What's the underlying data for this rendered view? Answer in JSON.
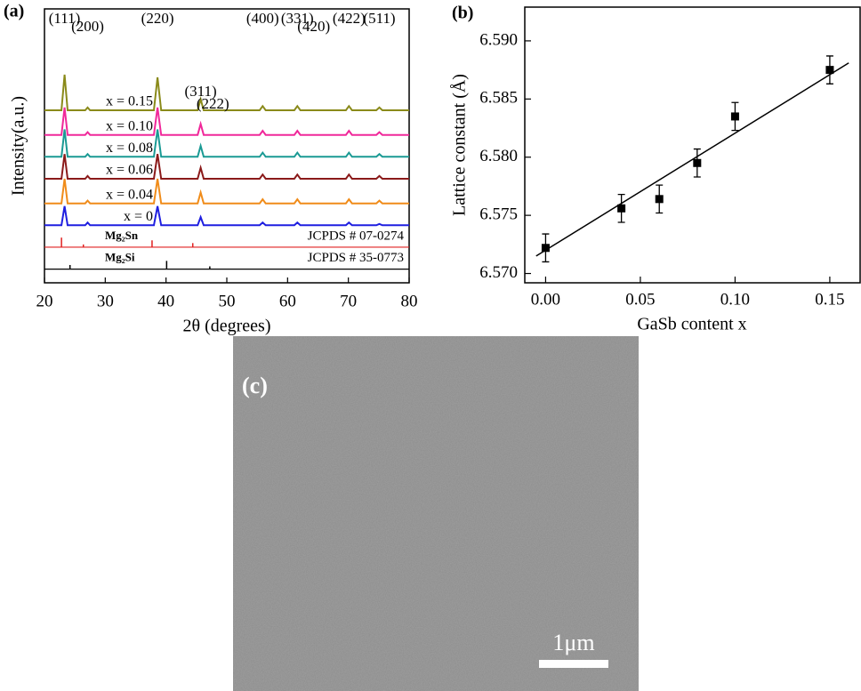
{
  "chart_data": [
    {
      "type": "line",
      "panel_label": "(a)",
      "x_label": "2θ (degrees)",
      "y_label": "Intensity(a.u.)",
      "xlim": [
        20,
        80
      ],
      "xticks": [
        20,
        30,
        40,
        50,
        60,
        70,
        80
      ],
      "ylim": [
        0,
        100
      ],
      "x": [
        20,
        22.8,
        23.3,
        23.8,
        26.7,
        27.1,
        27.5,
        38.0,
        38.6,
        39.2,
        45.2,
        45.7,
        46.2,
        55.4,
        55.9,
        56.4,
        61.1,
        61.6,
        62.1,
        69.6,
        70.1,
        70.6,
        74.6,
        75.1,
        75.6,
        80
      ],
      "series": [
        {
          "name": "x = 0",
          "color": "#1f1fe0",
          "values": [
            21,
            21,
            28,
            21,
            21,
            22,
            21,
            21,
            28,
            21,
            21,
            24,
            21,
            21,
            22,
            21,
            21,
            22,
            21,
            21,
            22,
            21,
            21,
            21.5,
            21,
            21
          ]
        },
        {
          "name": "x = 0.04",
          "color": "#f08c1a",
          "values": [
            29,
            29,
            38,
            29,
            29,
            30,
            29,
            29,
            38,
            29,
            29,
            33,
            29,
            29,
            30.5,
            29,
            29,
            30.5,
            29,
            29,
            30.5,
            29,
            29,
            30,
            29,
            29
          ]
        },
        {
          "name": "x = 0.06",
          "color": "#8b1a1a",
          "values": [
            38,
            38,
            47,
            38,
            38,
            39,
            38,
            38,
            47,
            38,
            38,
            42,
            38,
            38,
            39.5,
            38,
            38,
            39.5,
            38,
            38,
            39.5,
            38,
            38,
            39,
            38,
            38
          ]
        },
        {
          "name": "x = 0.08",
          "color": "#1a9a94",
          "values": [
            46,
            46,
            56,
            46,
            46,
            47,
            46,
            46,
            56,
            46,
            46,
            50,
            46,
            46,
            47.5,
            46,
            46,
            47.5,
            46,
            46,
            47.5,
            46,
            46,
            47,
            46,
            46
          ]
        },
        {
          "name": "x = 0.10",
          "color": "#f0289a",
          "values": [
            54,
            54,
            64,
            54,
            54,
            55,
            54,
            54,
            64,
            54,
            54,
            58,
            54,
            54,
            55.5,
            54,
            54,
            55.5,
            54,
            54,
            55.5,
            54,
            54,
            55,
            54,
            54
          ]
        },
        {
          "name": "x = 0.15",
          "color": "#8a8a1a",
          "values": [
            63,
            63,
            76,
            63,
            63,
            64,
            63,
            63,
            75,
            63,
            63,
            67,
            63,
            63,
            64.5,
            63,
            63,
            64.5,
            63,
            63,
            64.5,
            63,
            63,
            64,
            63,
            63
          ]
        }
      ],
      "peak_labels": [
        {
          "text": "(111)",
          "x": 23.3
        },
        {
          "text": "(200)",
          "x": 27.1
        },
        {
          "text": "(220)",
          "x": 38.6
        },
        {
          "text": "(311)",
          "x": 45.7
        },
        {
          "text": "(222)",
          "x": 47.7
        },
        {
          "text": "(400)",
          "x": 55.9
        },
        {
          "text": "(331)",
          "x": 61.6
        },
        {
          "text": "(420)",
          "x": 64.3
        },
        {
          "text": "(422)",
          "x": 70.1
        },
        {
          "text": "(511)",
          "x": 75.1
        }
      ],
      "references": [
        {
          "name": "Mg₂Sn",
          "card": "JCPDS # 07-0274",
          "color": "#e02020",
          "baseline": 13,
          "positions": [
            22.8,
            26.4,
            37.7,
            44.4
          ],
          "heights": [
            3.5,
            1,
            2.5,
            1.5
          ]
        },
        {
          "name": "Mg₂Si",
          "card": "JCPDS # 35-0773",
          "color": "#000000",
          "baseline": 5,
          "positions": [
            24.2,
            40.1,
            47.2
          ],
          "heights": [
            1.5,
            3,
            1
          ]
        }
      ]
    },
    {
      "type": "scatter",
      "panel_label": "(b)",
      "x_label": "GaSb content x",
      "y_label": "Lattice constant (Å)",
      "xlim": [
        -0.011,
        0.166
      ],
      "ylim": [
        6.5692,
        6.5929
      ],
      "xticks": [
        {
          "value": 0,
          "label": "0.00"
        },
        {
          "value": 0.05,
          "label": "0.05"
        },
        {
          "value": 0.1,
          "label": "0.10"
        },
        {
          "value": 0.15,
          "label": "0.15"
        }
      ],
      "yticks": [
        {
          "value": 6.57,
          "label": "6.570"
        },
        {
          "value": 6.575,
          "label": "6.575"
        },
        {
          "value": 6.58,
          "label": "6.580"
        },
        {
          "value": 6.585,
          "label": "6.585"
        },
        {
          "value": 6.59,
          "label": "6.590"
        }
      ],
      "x": [
        0,
        0.04,
        0.06,
        0.08,
        0.1,
        0.15
      ],
      "values": [
        6.5722,
        6.5756,
        6.5764,
        6.5795,
        6.5835,
        6.5875
      ],
      "errors": [
        0.0012,
        0.0012,
        0.0012,
        0.0012,
        0.0012,
        0.0012
      ],
      "color": "#000000",
      "fit": {
        "x": [
          -0.005,
          0.16
        ],
        "y": [
          6.5715,
          6.5881
        ]
      }
    }
  ],
  "image_panel": {
    "label": "(c)",
    "scale_bar": "1μm"
  }
}
